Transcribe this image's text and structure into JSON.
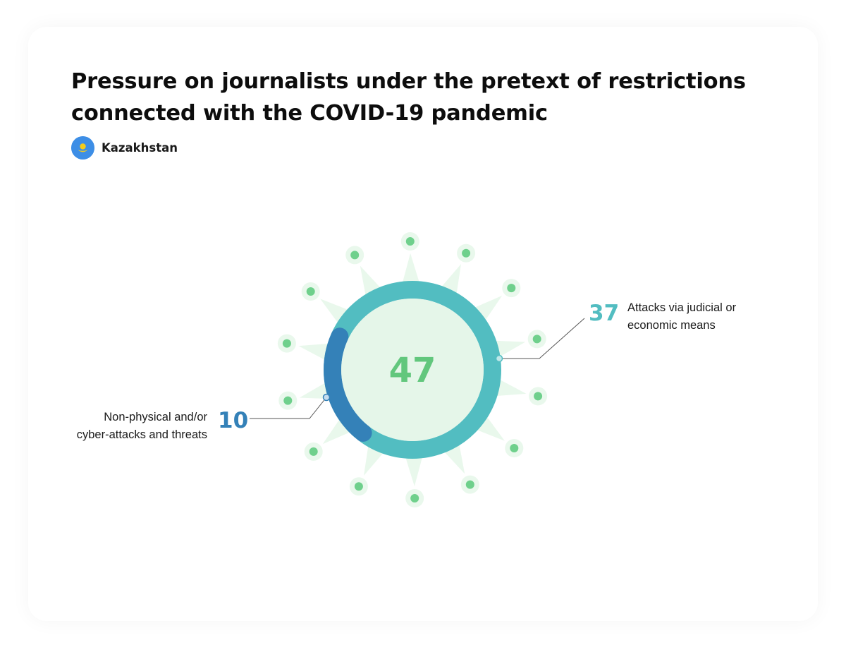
{
  "title": "Pressure on journalists under the pretext of restrictions connected with the COVID-19 pandemic",
  "country": {
    "name": "Kazakhstan",
    "flag_icon": "kazakhstan-flag-icon"
  },
  "colors": {
    "judicial": "#52bdc1",
    "nonphysical": "#3481b8",
    "center_fill": "#e5f6e9",
    "total_text": "#62c77d",
    "spike_fill": "#e9f8ec",
    "dot": "#6fd08c",
    "flag_bg": "#3d8ee6",
    "flag_sun": "#f5cc1b"
  },
  "chart_data": {
    "type": "pie",
    "total": 47,
    "segments": [
      {
        "value": 37,
        "label": "Attacks via judicial or economic means",
        "color": "#52bdc1"
      },
      {
        "value": 10,
        "label": "Non-physical and/or cyber-attacks and threats",
        "color": "#3481b8"
      }
    ]
  }
}
